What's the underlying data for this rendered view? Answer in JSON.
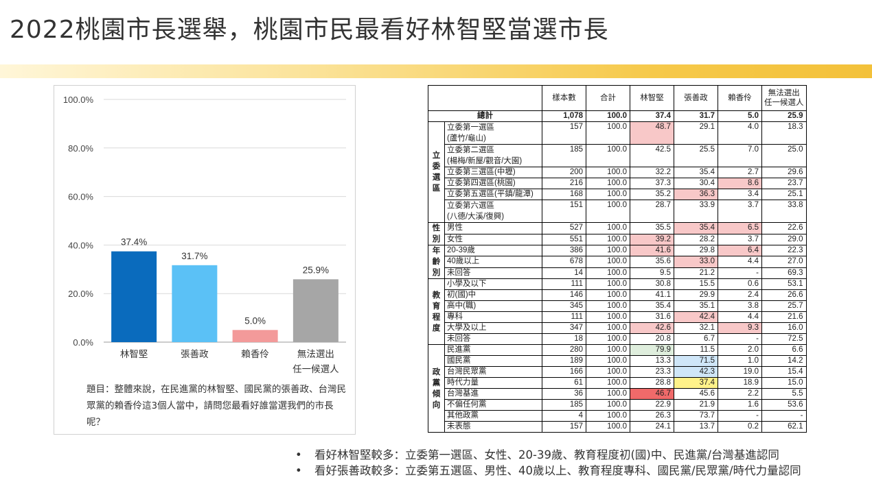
{
  "title": "2022桃園市長選舉，桃園市民最看好林智堅當選市長",
  "colors": {
    "band": "#f3c13a",
    "highlight_pink": "#f8c8c8",
    "highlight_red": "#f06a6a",
    "highlight_green": "#dfeedd",
    "highlight_blue": "#cfe6f8",
    "highlight_yellow": "#fff28a"
  },
  "chart_data": {
    "type": "bar",
    "categories": [
      "林智堅",
      "張善政",
      "賴香伶",
      "無法選出\n任一候選人"
    ],
    "values": [
      37.4,
      31.7,
      5.0,
      25.9
    ],
    "value_labels": [
      "37.4%",
      "31.7%",
      "5.0%",
      "25.9%"
    ],
    "colors": [
      "#0a6bbd",
      "#5bc1f6",
      "#f39a9a",
      "#a6a6a6"
    ],
    "yticks": [
      "0.0%",
      "20.0%",
      "40.0%",
      "60.0%",
      "80.0%",
      "100.0%"
    ],
    "ylim": [
      0,
      100
    ],
    "grid": true
  },
  "question": "題目：整體來說，在民進黨的林智堅、國民黨的張善政、台灣民眾黨的賴香伶這3個人當中，請問您最看好誰當選我們的市長呢？",
  "table": {
    "headers": [
      "樣本數",
      "合計",
      "林智堅",
      "張善政",
      "賴香伶",
      "無法選出\n任一候選人"
    ],
    "total": {
      "label": "總計",
      "values": [
        "1,078",
        "100.0",
        "37.4",
        "31.7",
        "5.0",
        "25.9"
      ]
    },
    "groups": [
      {
        "name": "立委選區",
        "rows": [
          {
            "label": "立委第一選區\n(蘆竹/龜山)",
            "values": [
              "157",
              "100.0",
              "48.7",
              "29.1",
              "4.0",
              "18.3"
            ],
            "hl": {
              "2": "pink"
            }
          },
          {
            "label": "立委第二選區\n(楊梅/新屋/觀音/大園)",
            "values": [
              "185",
              "100.0",
              "42.5",
              "25.5",
              "7.0",
              "25.0"
            ]
          },
          {
            "label": "立委第三選區(中壢)",
            "values": [
              "200",
              "100.0",
              "32.2",
              "35.4",
              "2.7",
              "29.6"
            ]
          },
          {
            "label": "立委第四選區(桃園)",
            "values": [
              "216",
              "100.0",
              "37.3",
              "30.4",
              "8.6",
              "23.7"
            ],
            "hl": {
              "4": "pink"
            }
          },
          {
            "label": "立委第五選區(平鎮/龍潭)",
            "values": [
              "168",
              "100.0",
              "35.2",
              "36.3",
              "3.4",
              "25.1"
            ],
            "hl": {
              "3": "pink"
            }
          },
          {
            "label": "立委第六選區\n(八德/大溪/復興)",
            "values": [
              "151",
              "100.0",
              "28.7",
              "33.9",
              "3.7",
              "33.8"
            ]
          }
        ]
      },
      {
        "name": "性別",
        "rows": [
          {
            "label": "男性",
            "values": [
              "527",
              "100.0",
              "35.5",
              "35.4",
              "6.5",
              "22.6"
            ],
            "hl": {
              "3": "pink",
              "4": "pink"
            }
          },
          {
            "label": "女性",
            "values": [
              "551",
              "100.0",
              "39.2",
              "28.2",
              "3.7",
              "29.0"
            ],
            "hl": {
              "2": "pink"
            }
          }
        ]
      },
      {
        "name": "年齡別",
        "rows": [
          {
            "label": "20-39歲",
            "values": [
              "386",
              "100.0",
              "41.6",
              "29.8",
              "6.4",
              "22.3"
            ],
            "hl": {
              "2": "pink",
              "4": "pink"
            }
          },
          {
            "label": "40歲以上",
            "values": [
              "678",
              "100.0",
              "35.6",
              "33.0",
              "4.4",
              "27.0"
            ],
            "hl": {
              "3": "pink"
            }
          },
          {
            "label": "未回答",
            "values": [
              "14",
              "100.0",
              "9.5",
              "21.2",
              "-",
              "69.3"
            ]
          }
        ]
      },
      {
        "name": "教育程度",
        "rows": [
          {
            "label": "小學及以下",
            "values": [
              "111",
              "100.0",
              "30.8",
              "15.5",
              "0.6",
              "53.1"
            ]
          },
          {
            "label": "初(國)中",
            "values": [
              "146",
              "100.0",
              "41.1",
              "29.9",
              "2.4",
              "26.6"
            ]
          },
          {
            "label": "高中(職)",
            "values": [
              "345",
              "100.0",
              "35.4",
              "35.1",
              "3.8",
              "25.7"
            ]
          },
          {
            "label": "專科",
            "values": [
              "111",
              "100.0",
              "31.6",
              "42.4",
              "4.4",
              "21.6"
            ],
            "hl": {
              "3": "pink"
            }
          },
          {
            "label": "大學及以上",
            "values": [
              "347",
              "100.0",
              "42.6",
              "32.1",
              "9.3",
              "16.0"
            ],
            "hl": {
              "2": "pink",
              "4": "pink"
            }
          },
          {
            "label": "未回答",
            "values": [
              "18",
              "100.0",
              "20.8",
              "6.7",
              "-",
              "72.5"
            ]
          }
        ]
      },
      {
        "name": "政黨傾向",
        "rows": [
          {
            "label": "民進黨",
            "values": [
              "280",
              "100.0",
              "79.9",
              "11.5",
              "2.0",
              "6.6"
            ],
            "hl": {
              "2": "green"
            }
          },
          {
            "label": "國民黨",
            "values": [
              "189",
              "100.0",
              "13.3",
              "71.5",
              "1.0",
              "14.2"
            ],
            "hl": {
              "3": "blue"
            }
          },
          {
            "label": "台灣民眾黨",
            "values": [
              "166",
              "100.0",
              "23.3",
              "42.3",
              "19.0",
              "15.4"
            ],
            "hl": {
              "3": "blue"
            }
          },
          {
            "label": "時代力量",
            "values": [
              "61",
              "100.0",
              "28.8",
              "37.4",
              "18.9",
              "15.0"
            ],
            "hl": {
              "3": "yellow"
            }
          },
          {
            "label": "台灣基進",
            "values": [
              "36",
              "100.0",
              "46.7",
              "45.6",
              "2.2",
              "5.5"
            ],
            "hl": {
              "2": "red"
            }
          },
          {
            "label": "不偏任何黨",
            "values": [
              "185",
              "100.0",
              "22.9",
              "21.9",
              "1.6",
              "53.6"
            ]
          },
          {
            "label": "其他政黨",
            "values": [
              "4",
              "100.0",
              "26.3",
              "73.7",
              "-",
              "-"
            ]
          },
          {
            "label": "未表態",
            "values": [
              "157",
              "100.0",
              "24.1",
              "13.7",
              "0.2",
              "62.1"
            ]
          }
        ]
      }
    ]
  },
  "bullets": [
    "看好林智堅較多：立委第一選區、女性、20-39歲、教育程度初(國)中、民進黨/台灣基進認同",
    "看好張善政較多：立委第五選區、男性、40歲以上、教育程度專科、國民黨/民眾黨/時代力量認同"
  ],
  "bullet_symbol": "•"
}
